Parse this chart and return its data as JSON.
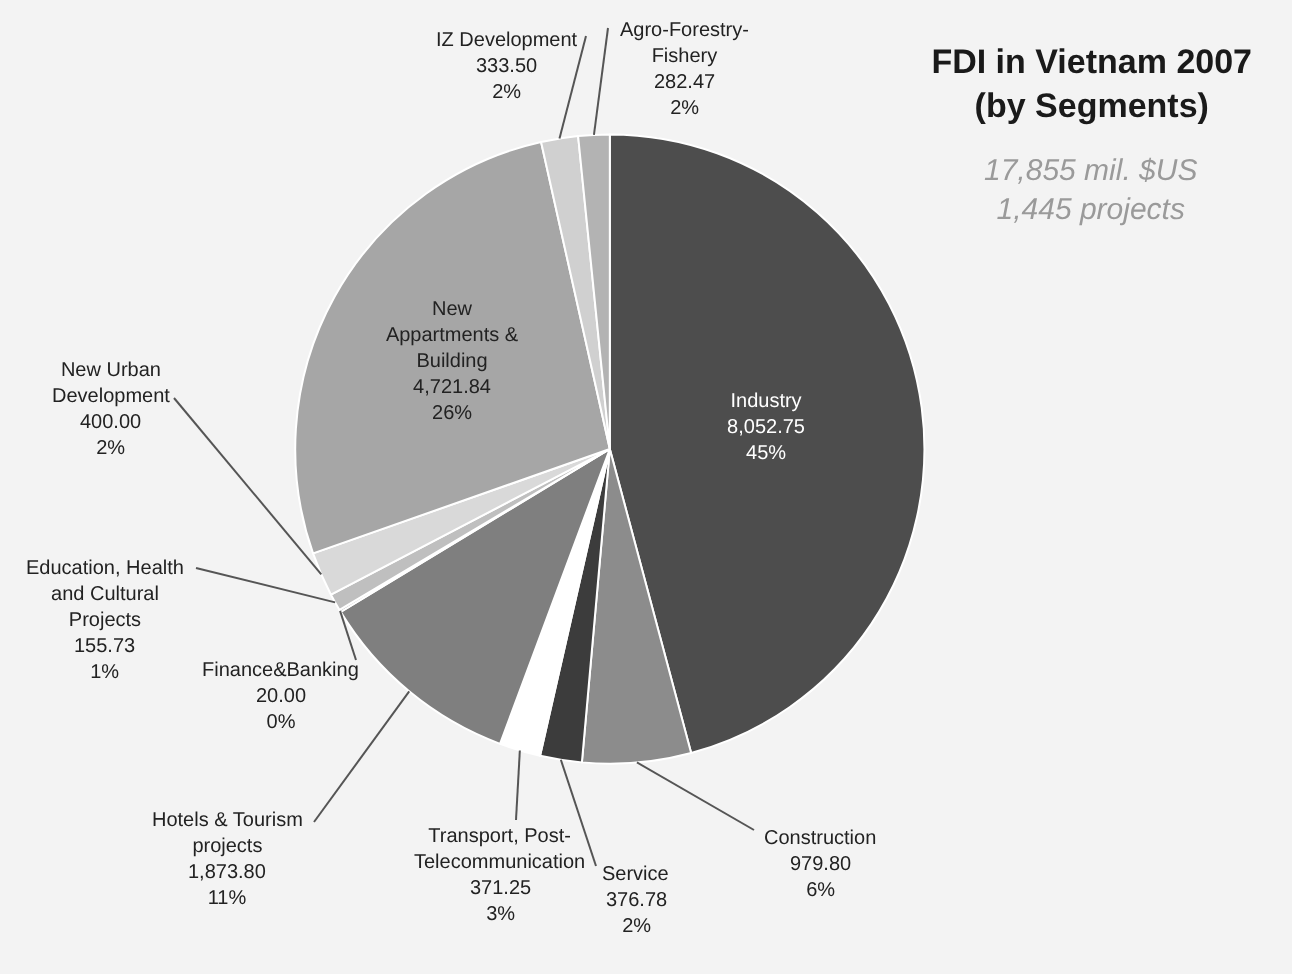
{
  "chart_data": {
    "type": "pie",
    "title": "FDI in Vietnam 2007 (by Segments)",
    "subtitle": "17,855 mil. $US 1,445 projects",
    "categories": [
      "Industry",
      "Construction",
      "Service",
      "Transport, Post-Telecommunication",
      "Hotels & Tourism projects",
      "Finance&Banking",
      "Education, Health and Cultural Projects",
      "New Urban Development",
      "New Appartments & Building",
      "IZ Development",
      "Agro-Forestry-Fishery"
    ],
    "values": [
      8052.75,
      979.8,
      376.78,
      371.25,
      1873.8,
      20.0,
      155.73,
      400.0,
      4721.84,
      333.5,
      282.47
    ],
    "value_labels": [
      "8,052.75\n45%",
      "979.80\n6%",
      "376.78\n2%",
      "371.25\n3%",
      "1,873.80\n11%",
      "20.00\n0%",
      "155.73\n1%",
      "400.00\n2%",
      "4,721.84\n26%",
      "333.50\n2%",
      "282.47\n2%"
    ],
    "colors": [
      "#4d4d4d",
      "#8c8c8c",
      "#3c3c3c",
      "#ffffff",
      "#7f7f7f",
      "#6e6e6e",
      "#bfbfbf",
      "#d9d9d9",
      "#a6a6a6",
      "#d0d0d0",
      "#b3b3b3"
    ]
  }
}
